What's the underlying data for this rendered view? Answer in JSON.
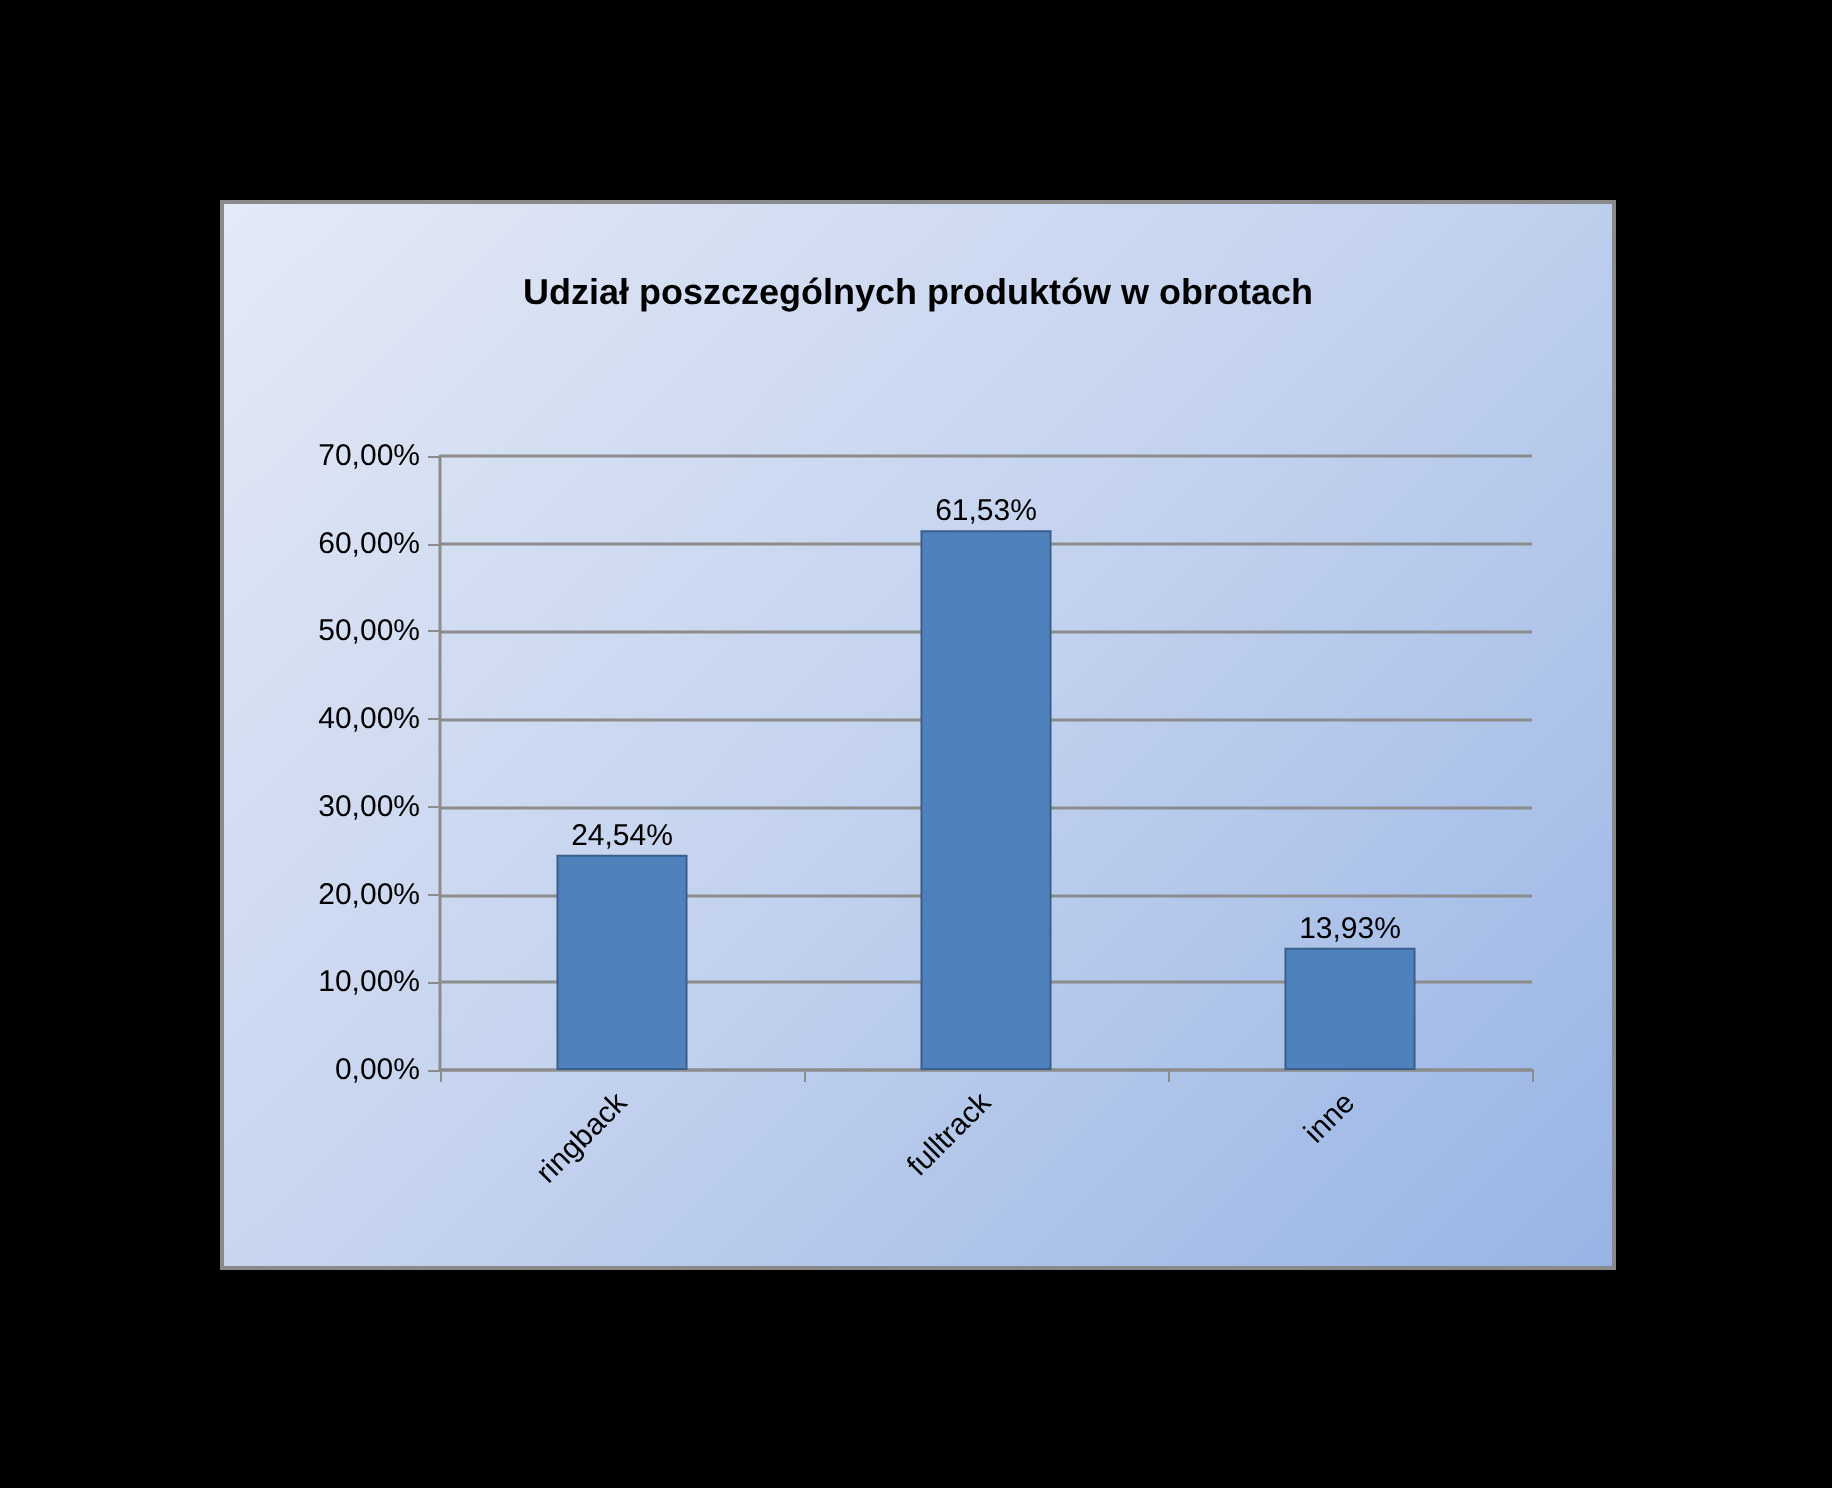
{
  "chart_data": {
    "type": "bar",
    "title": "Udział poszczególnych produktów w obrotach",
    "categories": [
      "ringback",
      "fulltrack",
      "inne"
    ],
    "values": [
      24.54,
      61.53,
      13.93
    ],
    "color": "#4f81bd",
    "value_labels": [
      "24,54%",
      "61,53%",
      "13,93%"
    ],
    "ylim": [
      0,
      70
    ],
    "yticks": [
      {
        "value": 0,
        "label": "0,00%"
      },
      {
        "value": 10,
        "label": "10,00%"
      },
      {
        "value": 20,
        "label": "20,00%"
      },
      {
        "value": 30,
        "label": "30,00%"
      },
      {
        "value": 40,
        "label": "40,00%"
      },
      {
        "value": 50,
        "label": "50,00%"
      },
      {
        "value": 60,
        "label": "60,00%"
      },
      {
        "value": 70,
        "label": "70,00%"
      }
    ],
    "grid": "y"
  }
}
